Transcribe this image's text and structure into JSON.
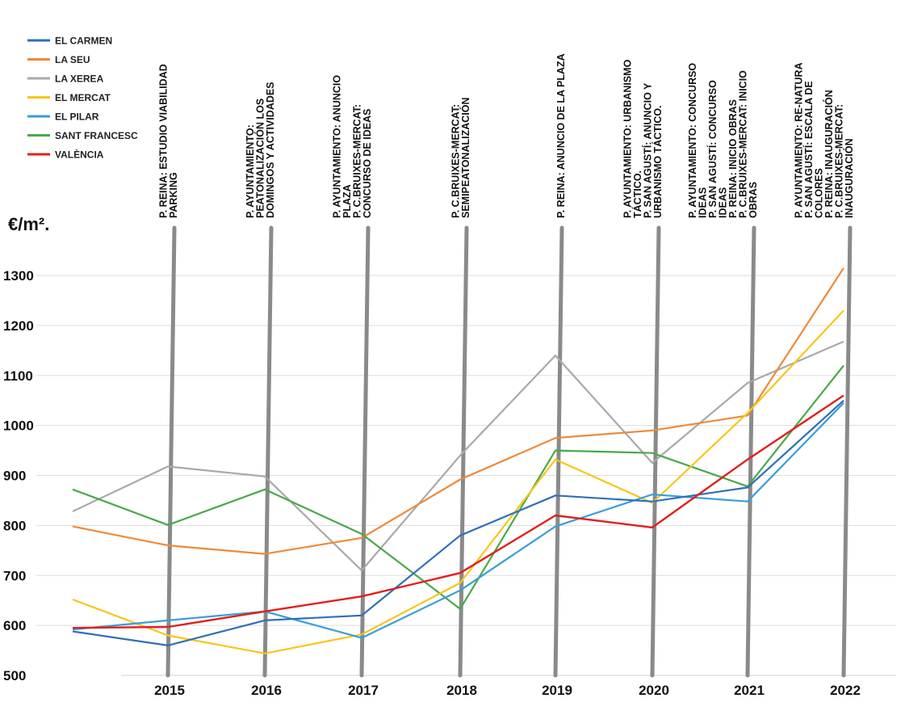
{
  "chart_data": {
    "type": "line",
    "ylabel": "€/m².",
    "x": [
      "",
      "2015",
      "2016",
      "2017",
      "2018",
      "2019",
      "2020",
      "2021",
      "2022"
    ],
    "yticks": [
      500,
      600,
      700,
      800,
      900,
      1000,
      1100,
      1200,
      1300
    ],
    "ylim": [
      500,
      1320
    ],
    "grid": true,
    "legend": "top-left",
    "series": [
      {
        "name": "EL CARMEN",
        "color": "#2f6fba",
        "values": [
          588,
          560,
          610,
          620,
          780,
          860,
          848,
          876,
          1050
        ]
      },
      {
        "name": "LA SEU",
        "color": "#ee8a3a",
        "values": [
          798,
          760,
          743,
          775,
          892,
          975,
          990,
          1020,
          1315
        ]
      },
      {
        "name": "LA XEREA",
        "color": "#a9a9a9",
        "values": [
          828,
          918,
          898,
          710,
          940,
          1140,
          925,
          1085,
          1168
        ]
      },
      {
        "name": "EL MERCAT",
        "color": "#f7c619",
        "values": [
          652,
          580,
          544,
          582,
          685,
          932,
          845,
          1025,
          1230
        ]
      },
      {
        "name": "EL PILAR",
        "color": "#3a9ed8",
        "values": [
          592,
          610,
          628,
          575,
          670,
          798,
          862,
          848,
          1045
        ]
      },
      {
        "name": "SANT FRANCESC",
        "color": "#4aa84a",
        "values": [
          872,
          801,
          872,
          783,
          633,
          950,
          945,
          878,
          1120
        ]
      },
      {
        "name": "VALÈNCIA",
        "color": "#e0201e",
        "values": [
          595,
          597,
          628,
          658,
          705,
          820,
          796,
          932,
          1060
        ]
      }
    ],
    "annotations": [
      {
        "year": "2015",
        "lines": [
          "P. REINA: ESTUDIO VIABILIDAD",
          "PARKING"
        ]
      },
      {
        "year": "2016",
        "lines": [
          "P. AYUNTAMIENTO:",
          "PEATONALIZACIÓN LOS",
          "DOMINGOS Y ACTIVIDADES"
        ]
      },
      {
        "year": "2017",
        "lines": [
          "P. AYUNTAMIENTO: ANUNCIO",
          "PLAZA",
          "P. C.BRUIXES-MERCAT:",
          "CONCURSO DE IDEAS"
        ]
      },
      {
        "year": "2018",
        "lines": [
          "P. C.BRUIXES-MERCAT:",
          "SEMIPEATONALIZACIÓN"
        ]
      },
      {
        "year": "2019",
        "lines": [
          "P. REINA: ANUNCIO DE LA PLAZA"
        ]
      },
      {
        "year": "2020",
        "lines": [
          "P. AYUNTAMIENTO: URBANISMO",
          "TÁCTICO.",
          "P. SAN AGUSTÍ: ANUNCIO Y",
          "URBANISMO TÁCTICO."
        ]
      },
      {
        "year": "2021",
        "lines": [
          "P. AYUNTAMIENTO: CONCURSO",
          "IDEAS",
          "P. SAN AGUSTÍ: CONCURSO",
          "IDEAS",
          "P. REINA: INICIO OBRAS",
          "P. C.BRUIXES-MERCAT: INICIO",
          "OBRAS"
        ]
      },
      {
        "year": "2022",
        "lines": [
          "P. AYUNTAMIENTO: RE-NATURA",
          "P. SAN AGUSTÍ: ESCALA DE",
          "COLORES",
          "P. REINA: INAUGURACIÓN",
          "P. C.BRUIXES-MERCAT:",
          "INAUGURACIÓN"
        ]
      }
    ]
  }
}
